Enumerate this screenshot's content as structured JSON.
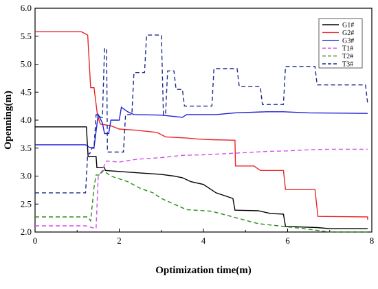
{
  "chart_data": {
    "type": "line",
    "xlabel": "Optimization time(m)",
    "ylabel": "Openning(m)",
    "xlim": [
      0,
      8
    ],
    "ylim": [
      2.0,
      6.0
    ],
    "xticks": [
      "0",
      "2",
      "4",
      "6",
      "8"
    ],
    "yticks": [
      "2.0",
      "2.5",
      "3.0",
      "3.5",
      "4.0",
      "4.5",
      "5.0",
      "5.5",
      "6.0"
    ],
    "legend_position": "top-right",
    "grid": false,
    "series": [
      {
        "name": "G1#",
        "color": "#000000",
        "style": "solid",
        "points": [
          [
            0,
            3.88
          ],
          [
            1.22,
            3.88
          ],
          [
            1.26,
            3.35
          ],
          [
            1.45,
            3.35
          ],
          [
            1.47,
            3.15
          ],
          [
            1.65,
            3.15
          ],
          [
            1.67,
            3.1
          ],
          [
            2.4,
            3.06
          ],
          [
            3.0,
            3.03
          ],
          [
            3.3,
            3.0
          ],
          [
            3.5,
            2.97
          ],
          [
            3.7,
            2.9
          ],
          [
            4.0,
            2.85
          ],
          [
            4.3,
            2.7
          ],
          [
            4.7,
            2.6
          ],
          [
            4.75,
            2.39
          ],
          [
            5.3,
            2.38
          ],
          [
            5.6,
            2.33
          ],
          [
            5.9,
            2.32
          ],
          [
            5.95,
            2.1
          ],
          [
            6.7,
            2.08
          ],
          [
            7.0,
            2.06
          ],
          [
            7.9,
            2.06
          ]
        ]
      },
      {
        "name": "G2#",
        "color": "#e8262a",
        "style": "solid",
        "points": [
          [
            0,
            5.58
          ],
          [
            1.1,
            5.58
          ],
          [
            1.25,
            5.52
          ],
          [
            1.32,
            4.58
          ],
          [
            1.4,
            4.58
          ],
          [
            1.48,
            4.1
          ],
          [
            1.55,
            3.93
          ],
          [
            1.8,
            3.9
          ],
          [
            2.0,
            3.84
          ],
          [
            2.4,
            3.82
          ],
          [
            2.9,
            3.78
          ],
          [
            3.1,
            3.7
          ],
          [
            3.6,
            3.68
          ],
          [
            3.9,
            3.66
          ],
          [
            4.2,
            3.65
          ],
          [
            4.75,
            3.64
          ],
          [
            4.76,
            3.18
          ],
          [
            5.2,
            3.18
          ],
          [
            5.35,
            3.1
          ],
          [
            5.9,
            3.1
          ],
          [
            5.95,
            2.76
          ],
          [
            6.65,
            2.76
          ],
          [
            6.72,
            2.28
          ],
          [
            7.9,
            2.27
          ],
          [
            7.9,
            2.22
          ]
        ]
      },
      {
        "name": "G3#",
        "color": "#1f1fd6",
        "style": "solid",
        "points": [
          [
            0,
            3.56
          ],
          [
            1.2,
            3.56
          ],
          [
            1.3,
            3.51
          ],
          [
            1.4,
            3.51
          ],
          [
            1.5,
            4.1
          ],
          [
            1.6,
            3.95
          ],
          [
            1.65,
            3.76
          ],
          [
            1.75,
            3.76
          ],
          [
            1.8,
            4.0
          ],
          [
            2.0,
            4.0
          ],
          [
            2.05,
            4.23
          ],
          [
            2.2,
            4.15
          ],
          [
            2.35,
            4.1
          ],
          [
            3.0,
            4.09
          ],
          [
            3.5,
            4.05
          ],
          [
            3.6,
            4.1
          ],
          [
            4.3,
            4.1
          ],
          [
            4.75,
            4.13
          ],
          [
            5.5,
            4.15
          ],
          [
            5.9,
            4.15
          ],
          [
            6.5,
            4.13
          ],
          [
            7.9,
            4.12
          ]
        ]
      },
      {
        "name": "T1#",
        "color": "#d24fe8",
        "style": "dashed",
        "points": [
          [
            0,
            2.11
          ],
          [
            1.2,
            2.11
          ],
          [
            1.45,
            2.06
          ],
          [
            1.5,
            3.0
          ],
          [
            1.6,
            3.1
          ],
          [
            1.65,
            3.2
          ],
          [
            1.7,
            3.27
          ],
          [
            2.0,
            3.25
          ],
          [
            2.4,
            3.3
          ],
          [
            3.0,
            3.33
          ],
          [
            3.5,
            3.37
          ],
          [
            4.0,
            3.38
          ],
          [
            4.5,
            3.4
          ],
          [
            5.0,
            3.42
          ],
          [
            5.5,
            3.44
          ],
          [
            6.0,
            3.45
          ],
          [
            6.5,
            3.47
          ],
          [
            7.0,
            3.48
          ],
          [
            7.9,
            3.48
          ]
        ]
      },
      {
        "name": "T2#",
        "color": "#2a8a1a",
        "style": "dashed",
        "points": [
          [
            0,
            2.27
          ],
          [
            1.25,
            2.27
          ],
          [
            1.32,
            2.2
          ],
          [
            1.4,
            2.8
          ],
          [
            1.45,
            3.02
          ],
          [
            1.55,
            3.02
          ],
          [
            1.62,
            3.1
          ],
          [
            1.8,
            3.0
          ],
          [
            2.2,
            2.9
          ],
          [
            2.5,
            2.78
          ],
          [
            2.8,
            2.7
          ],
          [
            3.0,
            2.6
          ],
          [
            3.3,
            2.5
          ],
          [
            3.6,
            2.4
          ],
          [
            4.2,
            2.37
          ],
          [
            4.8,
            2.25
          ],
          [
            5.3,
            2.15
          ],
          [
            5.9,
            2.1
          ],
          [
            6.5,
            2.05
          ],
          [
            7.0,
            2.0
          ],
          [
            7.9,
            2.0
          ]
        ]
      },
      {
        "name": "T3#",
        "color": "#1a2a8c",
        "style": "dashed",
        "points": [
          [
            0,
            2.7
          ],
          [
            1.2,
            2.7
          ],
          [
            1.25,
            3.4
          ],
          [
            1.3,
            3.4
          ],
          [
            1.35,
            3.5
          ],
          [
            1.4,
            3.5
          ],
          [
            1.45,
            4.1
          ],
          [
            1.5,
            4.1
          ],
          [
            1.55,
            4.05
          ],
          [
            1.6,
            4.05
          ],
          [
            1.65,
            5.28
          ],
          [
            1.7,
            5.28
          ],
          [
            1.72,
            3.43
          ],
          [
            2.1,
            3.43
          ],
          [
            2.15,
            4.1
          ],
          [
            2.3,
            4.1
          ],
          [
            2.35,
            4.85
          ],
          [
            2.6,
            4.85
          ],
          [
            2.65,
            5.52
          ],
          [
            3.0,
            5.52
          ],
          [
            3.05,
            4.1
          ],
          [
            3.1,
            4.1
          ],
          [
            3.15,
            4.88
          ],
          [
            3.3,
            4.88
          ],
          [
            3.35,
            4.55
          ],
          [
            3.5,
            4.55
          ],
          [
            3.55,
            4.25
          ],
          [
            4.2,
            4.25
          ],
          [
            4.25,
            4.92
          ],
          [
            4.8,
            4.92
          ],
          [
            4.85,
            4.6
          ],
          [
            5.35,
            4.6
          ],
          [
            5.4,
            4.28
          ],
          [
            5.9,
            4.28
          ],
          [
            5.95,
            4.96
          ],
          [
            6.65,
            4.96
          ],
          [
            6.7,
            4.63
          ],
          [
            7.85,
            4.63
          ],
          [
            7.9,
            4.3
          ]
        ]
      }
    ]
  }
}
